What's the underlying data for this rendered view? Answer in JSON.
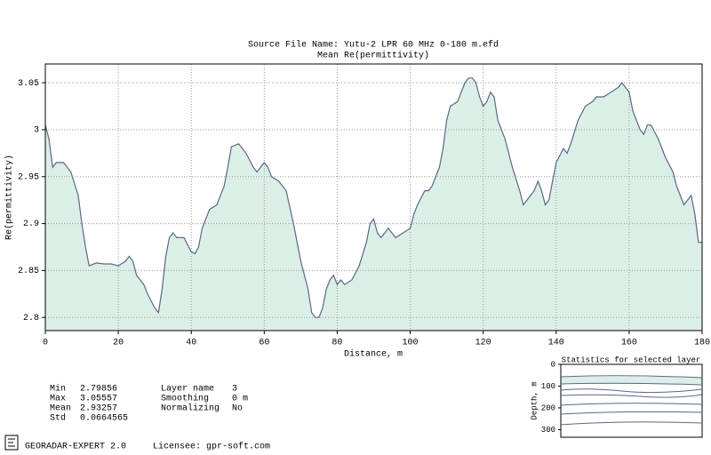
{
  "chart_data": {
    "type": "area",
    "title": "Source File Name: Yutu-2 LPR 60 MHz 0-180 m.efd",
    "subtitle": "Mean Re(permittivity)",
    "xlabel": "Distance, m",
    "ylabel": "Re(permittivity)",
    "x": [
      0,
      1,
      2,
      3,
      5,
      7,
      9,
      10,
      11,
      12,
      14,
      16,
      18,
      20,
      22,
      23,
      24,
      25,
      27,
      28,
      30,
      31,
      32,
      33,
      34,
      35,
      36,
      38,
      40,
      41,
      42,
      43,
      45,
      47,
      49,
      50,
      51,
      53,
      55,
      57,
      58,
      59,
      60,
      61,
      62,
      64,
      66,
      68,
      70,
      72,
      73,
      74,
      75,
      76,
      77,
      78,
      79,
      80,
      81,
      82,
      84,
      86,
      88,
      89,
      90,
      91,
      92,
      94,
      95,
      96,
      98,
      100,
      101,
      102,
      104,
      105,
      106,
      108,
      109,
      110,
      111,
      113,
      114,
      115,
      116,
      117,
      118,
      119,
      120,
      121,
      122,
      123,
      124,
      126,
      127,
      128,
      130,
      131,
      132,
      134,
      135,
      136,
      137,
      138,
      139,
      140,
      142,
      143,
      144,
      146,
      148,
      150,
      151,
      153,
      155,
      157,
      158,
      159,
      160,
      161,
      162,
      163,
      164,
      165,
      166,
      168,
      170,
      172,
      173,
      174,
      175,
      176,
      177,
      178,
      179,
      180
    ],
    "values": [
      3.005,
      2.99,
      2.96,
      2.965,
      2.965,
      2.955,
      2.93,
      2.9,
      2.875,
      2.855,
      2.858,
      2.857,
      2.857,
      2.855,
      2.86,
      2.865,
      2.86,
      2.845,
      2.835,
      2.825,
      2.81,
      2.805,
      2.83,
      2.865,
      2.885,
      2.89,
      2.885,
      2.885,
      2.87,
      2.868,
      2.875,
      2.895,
      2.915,
      2.92,
      2.94,
      2.96,
      2.982,
      2.985,
      2.975,
      2.96,
      2.955,
      2.96,
      2.965,
      2.96,
      2.95,
      2.945,
      2.935,
      2.9,
      2.86,
      2.83,
      2.805,
      2.8,
      2.8,
      2.81,
      2.83,
      2.84,
      2.845,
      2.835,
      2.84,
      2.835,
      2.84,
      2.855,
      2.88,
      2.9,
      2.905,
      2.89,
      2.885,
      2.895,
      2.89,
      2.885,
      2.89,
      2.895,
      2.91,
      2.92,
      2.935,
      2.935,
      2.94,
      2.96,
      2.98,
      3.01,
      3.025,
      3.03,
      3.04,
      3.05,
      3.055,
      3.055,
      3.05,
      3.035,
      3.025,
      3.03,
      3.04,
      3.035,
      3.01,
      2.99,
      2.975,
      2.96,
      2.935,
      2.92,
      2.925,
      2.935,
      2.945,
      2.935,
      2.92,
      2.925,
      2.945,
      2.965,
      2.98,
      2.975,
      2.985,
      3.01,
      3.025,
      3.03,
      3.035,
      3.035,
      3.04,
      3.045,
      3.05,
      3.045,
      3.04,
      3.02,
      3.01,
      3.0,
      2.995,
      3.005,
      3.005,
      2.99,
      2.97,
      2.955,
      2.94,
      2.93,
      2.92,
      2.925,
      2.93,
      2.91,
      2.88,
      2.88
    ],
    "line_color": "#5a6688",
    "fill_color": "#dcefe7",
    "xlim": [
      0,
      180
    ],
    "xticks": [
      0,
      20,
      40,
      60,
      80,
      100,
      120,
      140,
      160,
      180
    ],
    "ylim": [
      2.786,
      3.07
    ],
    "yticks": [
      2.8,
      2.85,
      2.9,
      2.95,
      3,
      3.05
    ],
    "grid": true
  },
  "stats": [
    {
      "label": "Min",
      "value": "2.79856"
    },
    {
      "label": "Max",
      "value": "3.05557"
    },
    {
      "label": "Mean",
      "value": "2.93257"
    },
    {
      "label": "Std",
      "value": "0.0664565"
    }
  ],
  "settings": [
    {
      "label": "Layer name",
      "value": "3"
    },
    {
      "label": "Smoothing",
      "value": "0 m"
    },
    {
      "label": "Normalizing",
      "value": "No"
    }
  ],
  "inset": {
    "title": "Statistics for selected layer",
    "ylabel": "Depth, m",
    "ylim": [
      0,
      335
    ],
    "yticks": [
      0,
      100,
      200,
      300
    ]
  },
  "footer": {
    "app": "GEORADAR-EXPERT 2.0",
    "licensee": "Licensee: gpr-soft.com"
  }
}
